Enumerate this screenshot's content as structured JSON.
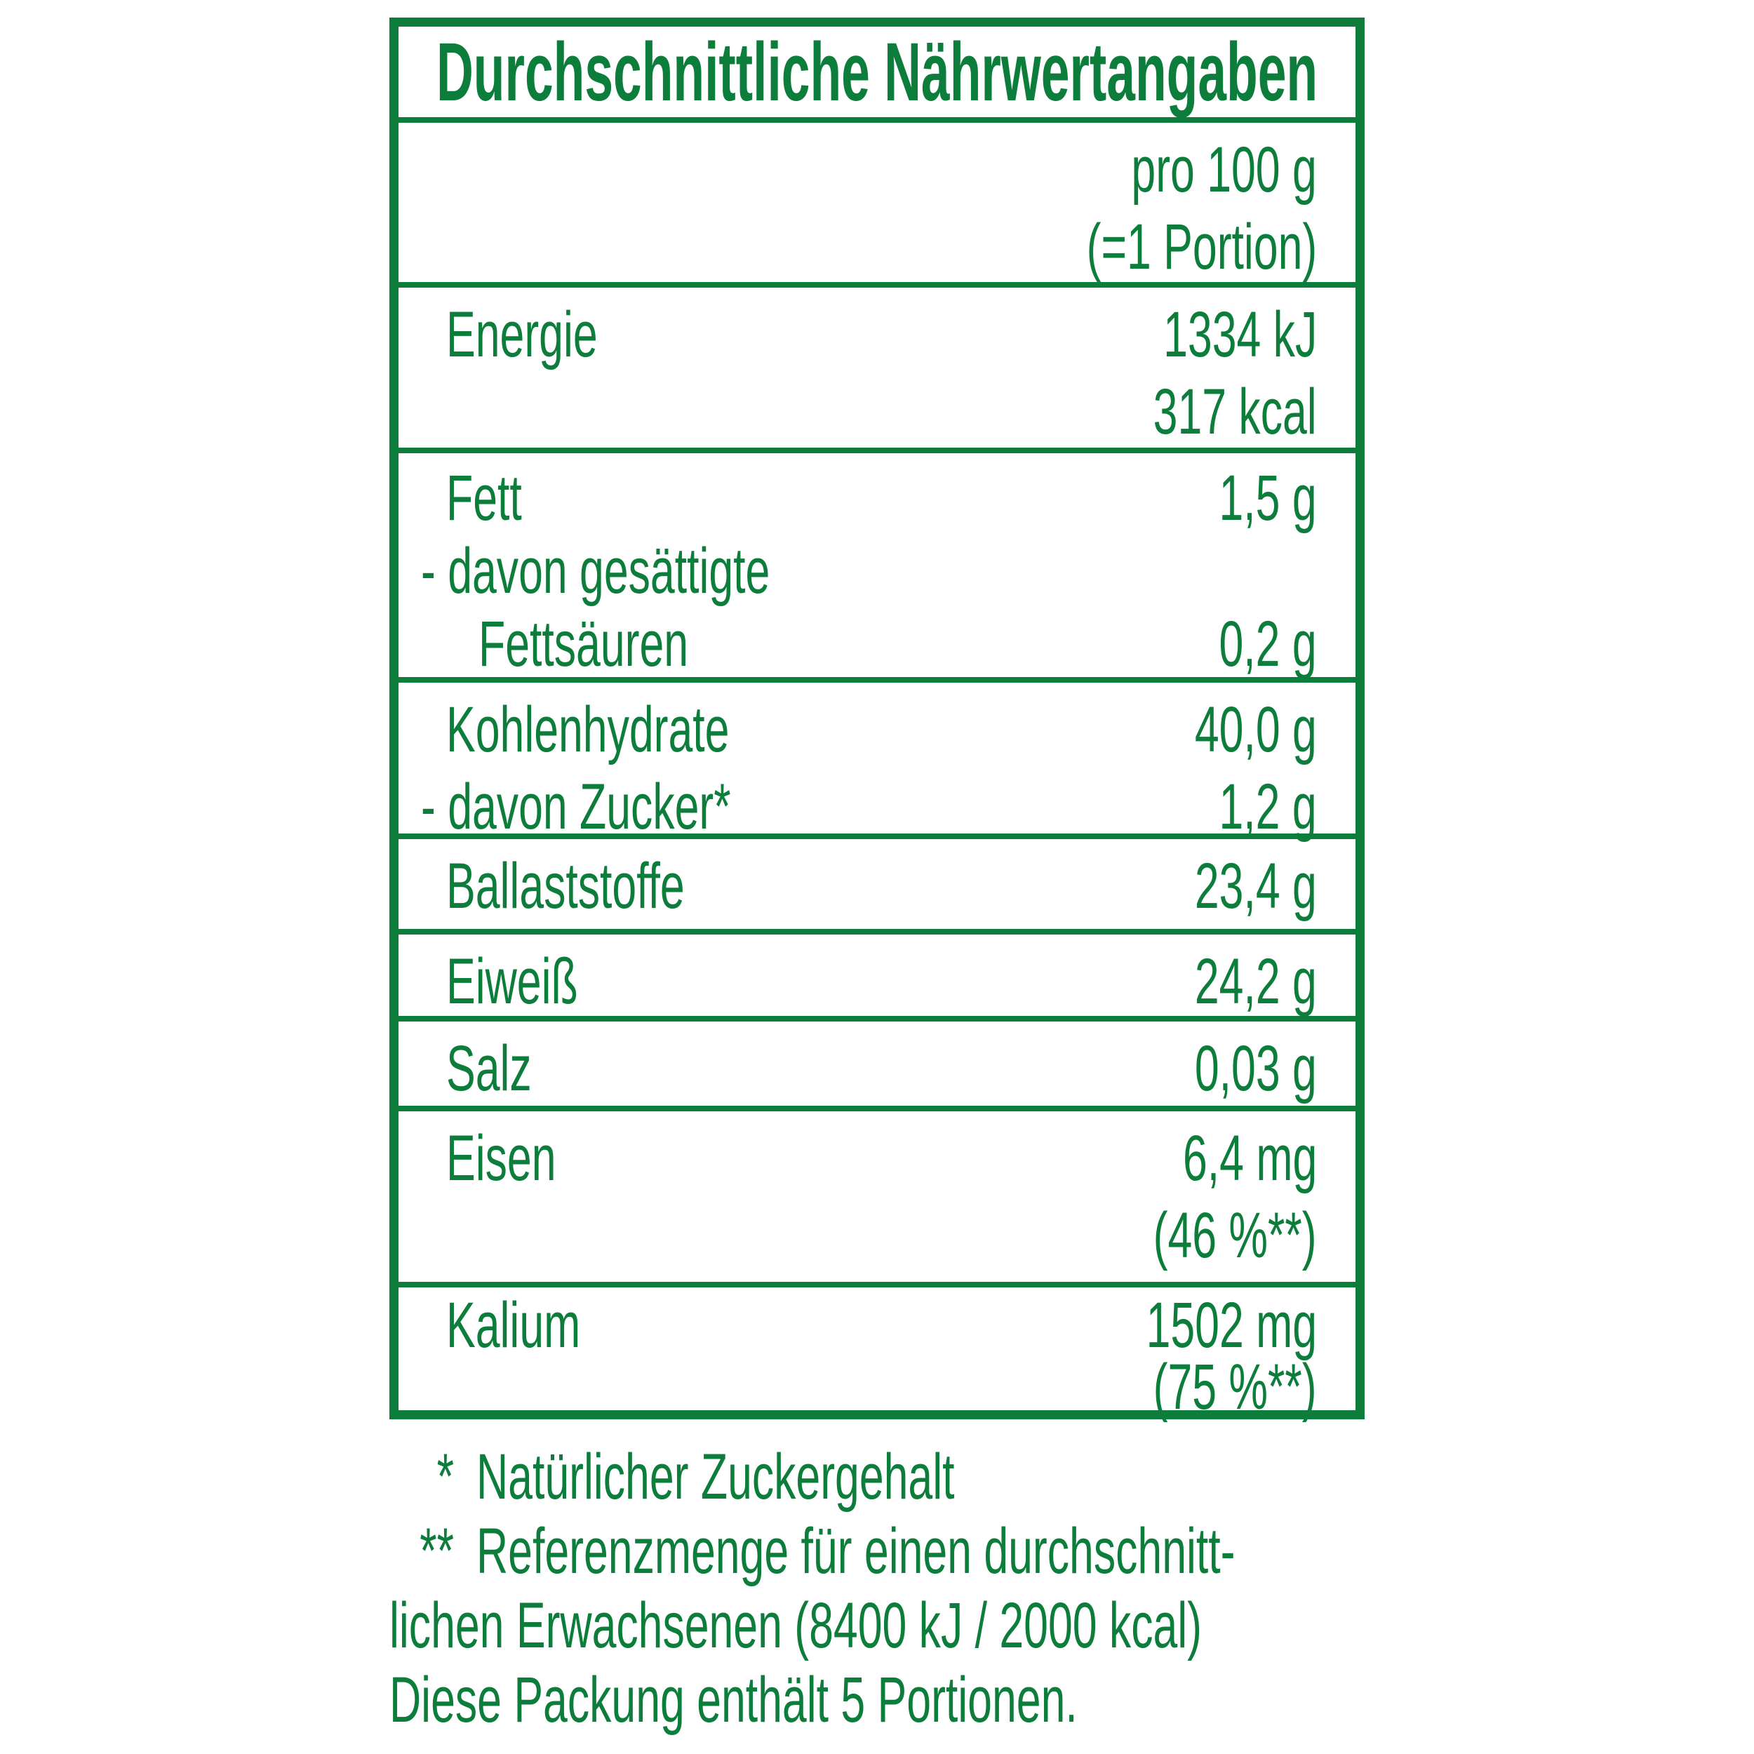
{
  "colors": {
    "green": "#0d7d3c",
    "background": "#ffffff"
  },
  "table": {
    "title": "Durchschnittliche Nährwertangaben",
    "header": {
      "line1": "pro 100 g",
      "line2": "(=1 Portion)"
    },
    "rows": {
      "energie": {
        "lines": [
          {
            "label": "Energie",
            "value": "1334 kJ"
          },
          {
            "label": "",
            "value": "317 kcal"
          }
        ]
      },
      "fett": {
        "lines": [
          {
            "label": "Fett",
            "value": "1,5 g"
          },
          {
            "label": "- davon gesättigte",
            "value": ""
          },
          {
            "label": "Fettsäuren",
            "value": "0,2 g"
          }
        ]
      },
      "kohlenhydrate": {
        "lines": [
          {
            "label": "Kohlenhydrate",
            "value": "40,0 g"
          },
          {
            "label": "- davon Zucker*",
            "value": "1,2 g"
          }
        ]
      },
      "ballaststoffe": {
        "lines": [
          {
            "label": "Ballaststoffe",
            "value": "23,4 g"
          }
        ]
      },
      "eiweiss": {
        "lines": [
          {
            "label": "Eiweiß",
            "value": "24,2 g"
          }
        ]
      },
      "salz": {
        "lines": [
          {
            "label": "Salz",
            "value": "0,03 g"
          }
        ]
      },
      "eisen": {
        "lines": [
          {
            "label": "Eisen",
            "value": "6,4 mg"
          },
          {
            "label": "",
            "value": "(46 %**)"
          }
        ]
      },
      "kalium": {
        "lines": [
          {
            "label": "Kalium",
            "value": "1502 mg"
          },
          {
            "label": "",
            "value": "(75 %**)"
          }
        ]
      }
    }
  },
  "footnotes": [
    {
      "marker": "*",
      "text": "Natürlicher Zuckergehalt"
    },
    {
      "marker": "**",
      "text": "Referenzmenge für einen durchschnitt-"
    },
    {
      "marker": "",
      "text": "lichen Erwachsenen (8400 kJ / 2000 kcal)"
    },
    {
      "marker": "",
      "text": "Diese Packung enthält 5 Portionen."
    }
  ]
}
